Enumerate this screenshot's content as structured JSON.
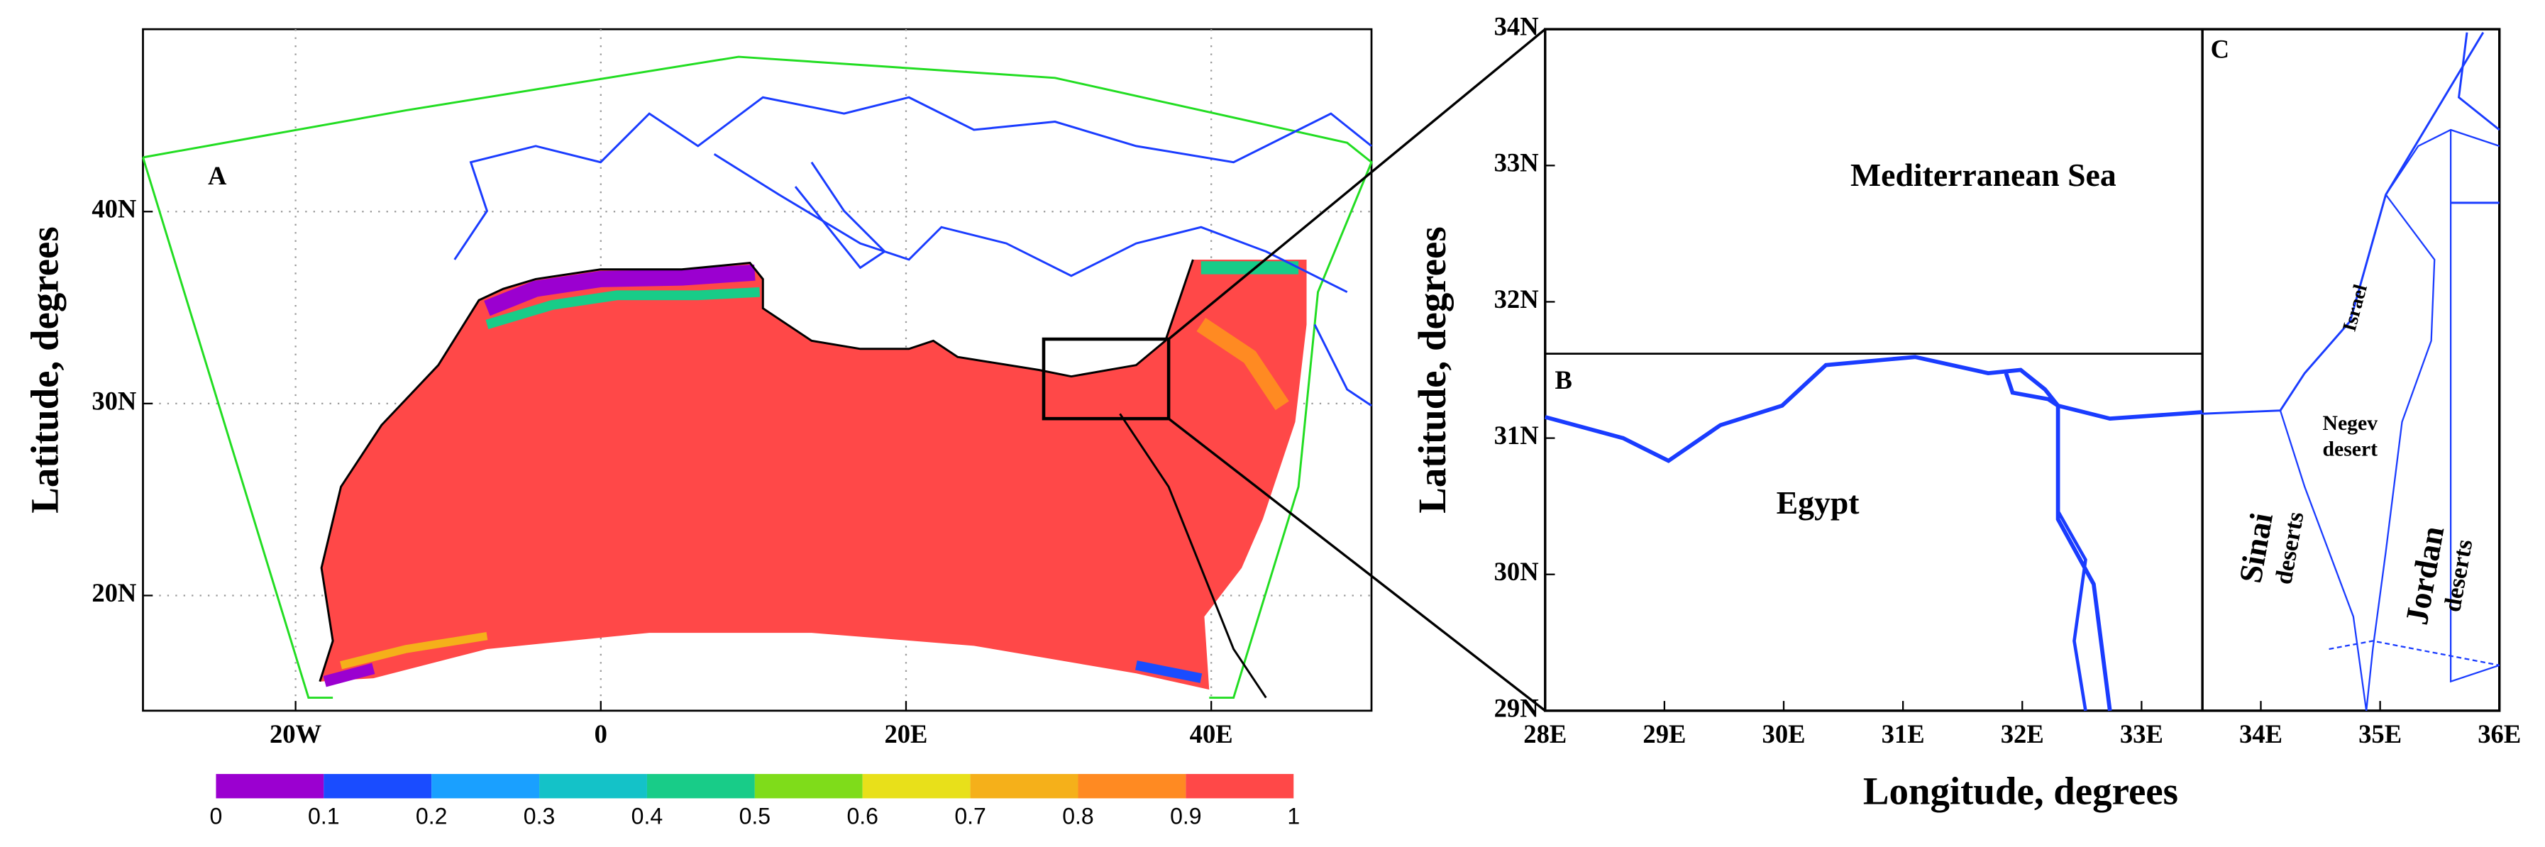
{
  "panel_a": {
    "label": "A",
    "ylabel": "Latitude,  degrees",
    "xlim": [
      -30,
      50.5
    ],
    "ylim": [
      14,
      49.5
    ],
    "xticks": [
      {
        "value": -20,
        "label": "20W"
      },
      0,
      {
        "value": 20,
        "label": "20E"
      },
      {
        "value": 40,
        "label": "40E"
      }
    ],
    "yticks": [
      {
        "value": 20,
        "label": "20N"
      },
      {
        "value": 30,
        "label": "30N"
      },
      {
        "value": 40,
        "label": "40N"
      }
    ],
    "grid": true
  },
  "colorbar": {
    "ticks": [
      0,
      0.1,
      0.2,
      0.3,
      0.4,
      0.5,
      0.6,
      0.7,
      0.8,
      0.9,
      1
    ],
    "colors": [
      "#9b00d0",
      "#1a4cff",
      "#1aa0ff",
      "#14c2c8",
      "#18cc88",
      "#7fdc1a",
      "#e8e01a",
      "#f5b01a",
      "#ff8a22",
      "#ff4848"
    ]
  },
  "panel_bc": {
    "label_b": "B",
    "label_c": "C",
    "ylabel": "Latitude,  degrees",
    "xlabel": "Longitude,  degrees",
    "xlim": [
      28,
      36
    ],
    "ylim": [
      29,
      34
    ],
    "xticks": [
      {
        "value": 28,
        "label": "28E"
      },
      {
        "value": 29,
        "label": "29E"
      },
      {
        "value": 30,
        "label": "30E"
      },
      {
        "value": 31,
        "label": "31E"
      },
      {
        "value": 32,
        "label": "32E"
      },
      {
        "value": 33,
        "label": "33E"
      },
      {
        "value": 34,
        "label": "34E"
      },
      {
        "value": 35,
        "label": "35E"
      },
      {
        "value": 36,
        "label": "36E"
      }
    ],
    "yticks": [
      {
        "value": 29,
        "label": "29N"
      },
      {
        "value": 30,
        "label": "30N"
      },
      {
        "value": 31,
        "label": "31N"
      },
      {
        "value": 32,
        "label": "32N"
      },
      {
        "value": 33,
        "label": "33N"
      },
      {
        "value": 34,
        "label": "34N"
      }
    ],
    "regions": {
      "sea": "Mediterranean Sea",
      "egypt": "Egypt",
      "israel": "Israel",
      "negev": [
        "Negev",
        "desert"
      ],
      "sinai": [
        "Sinai",
        "deserts"
      ],
      "jordan": [
        "Jordan",
        "deserts"
      ]
    }
  }
}
